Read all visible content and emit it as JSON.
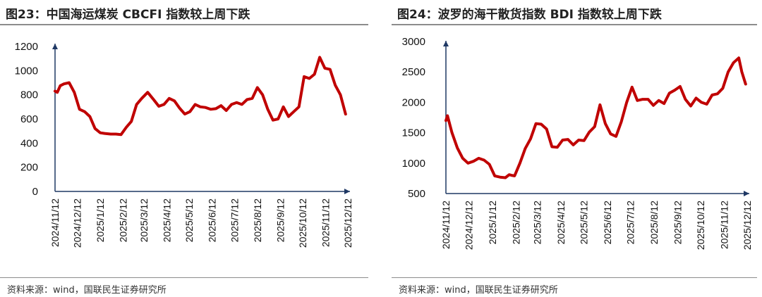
{
  "charts": [
    {
      "title": "图23：中国海运煤炭 CBCFI 指数较上周下跌",
      "source": "资料来源：wind，国联民生证券研究所",
      "line_color": "#C00000",
      "axis_color": "#1F3864"
    },
    {
      "title": "图24：波罗的海干散货指数 BDI 指数较上周下跌",
      "source": "资料来源：wind，国联民生证券研究所",
      "line_color": "#C00000",
      "axis_color": "#1F3864"
    }
  ],
  "chart_data": [
    {
      "type": "line",
      "title": "图23：中国海运煤炭 CBCFI 指数较上周下跌",
      "ylim": [
        0,
        1200
      ],
      "yticks": [
        0,
        200,
        400,
        600,
        800,
        1000,
        1200
      ],
      "xlim": [
        "2024-11-12",
        "2025-12-12"
      ],
      "xtick_labels": [
        "2024/11/12",
        "2024/12/12",
        "2025/1/12",
        "2025/2/12",
        "2025/3/12",
        "2025/4/12",
        "2025/5/12",
        "2025/6/12",
        "2025/7/12",
        "2025/8/12",
        "2025/9/12",
        "2025/10/12",
        "2025/11/12",
        "2025/12/12"
      ],
      "grid": false,
      "series": [
        {
          "x": [
            "2024-11-12",
            "2024-11-15",
            "2024-11-19",
            "2024-11-24",
            "2024-12-01",
            "2024-12-08",
            "2024-12-15",
            "2024-12-22",
            "2024-12-29",
            "2025-01-05",
            "2025-01-12",
            "2025-01-18",
            "2025-01-26",
            "2025-02-02",
            "2025-02-09",
            "2025-02-16",
            "2025-02-23",
            "2025-03-02",
            "2025-03-09",
            "2025-03-17",
            "2025-03-25",
            "2025-04-01",
            "2025-04-08",
            "2025-04-15",
            "2025-04-22",
            "2025-04-29",
            "2025-05-06",
            "2025-05-13",
            "2025-05-20",
            "2025-05-27",
            "2025-06-03",
            "2025-06-10",
            "2025-06-17",
            "2025-06-24",
            "2025-07-01",
            "2025-07-08",
            "2025-07-15",
            "2025-07-22",
            "2025-07-29",
            "2025-08-05",
            "2025-08-12",
            "2025-08-19",
            "2025-08-26",
            "2025-09-02",
            "2025-09-09",
            "2025-09-16",
            "2025-09-23",
            "2025-09-30",
            "2025-10-07",
            "2025-10-14",
            "2025-10-21",
            "2025-10-28",
            "2025-11-04",
            "2025-11-11",
            "2025-11-18",
            "2025-11-25",
            "2025-12-02",
            "2025-12-09"
          ],
          "y": [
            830,
            820,
            875,
            890,
            900,
            820,
            680,
            660,
            620,
            520,
            485,
            480,
            475,
            475,
            470,
            530,
            580,
            720,
            770,
            820,
            760,
            705,
            720,
            770,
            750,
            690,
            640,
            660,
            720,
            700,
            695,
            680,
            685,
            710,
            670,
            720,
            735,
            720,
            760,
            770,
            860,
            800,
            680,
            590,
            600,
            700,
            620,
            660,
            700,
            950,
            935,
            970,
            1110,
            1020,
            1010,
            880,
            800,
            640
          ]
        }
      ]
    },
    {
      "type": "line",
      "title": "图24：波罗的海干散货指数 BDI 指数较上周下跌",
      "ylim": [
        500,
        3000
      ],
      "yticks": [
        500,
        1000,
        1500,
        2000,
        2500,
        3000
      ],
      "xlim": [
        "2024-11-12",
        "2025-12-12"
      ],
      "xtick_labels": [
        "2024/11/12",
        "2024/12/12",
        "2025/1/12",
        "2025/2/12",
        "2025/3/12",
        "2025/4/12",
        "2025/5/12",
        "2025/6/12",
        "2025/7/12",
        "2025/8/12",
        "2025/9/12",
        "2025/10/12",
        "2025/11/12",
        "2025/12/12"
      ],
      "grid": false,
      "series": [
        {
          "x": [
            "2024-11-12",
            "2024-11-14",
            "2024-11-20",
            "2024-11-27",
            "2024-12-04",
            "2024-12-11",
            "2024-12-18",
            "2024-12-25",
            "2025-01-01",
            "2025-01-08",
            "2025-01-15",
            "2025-01-22",
            "2025-01-29",
            "2025-02-03",
            "2025-02-06",
            "2025-02-10",
            "2025-02-17",
            "2025-02-24",
            "2025-03-03",
            "2025-03-10",
            "2025-03-17",
            "2025-03-24",
            "2025-03-31",
            "2025-04-07",
            "2025-04-14",
            "2025-04-21",
            "2025-04-28",
            "2025-05-05",
            "2025-05-12",
            "2025-05-19",
            "2025-05-26",
            "2025-06-02",
            "2025-06-09",
            "2025-06-16",
            "2025-06-23",
            "2025-06-30",
            "2025-07-07",
            "2025-07-14",
            "2025-07-21",
            "2025-07-28",
            "2025-08-04",
            "2025-08-11",
            "2025-08-18",
            "2025-08-25",
            "2025-09-01",
            "2025-09-08",
            "2025-09-15",
            "2025-09-22",
            "2025-09-29",
            "2025-10-06",
            "2025-10-13",
            "2025-10-20",
            "2025-10-27",
            "2025-11-03",
            "2025-11-10",
            "2025-11-17",
            "2025-11-24",
            "2025-12-01",
            "2025-12-05",
            "2025-12-10"
          ],
          "y": [
            1700,
            1780,
            1500,
            1250,
            1080,
            1000,
            1030,
            1080,
            1050,
            980,
            790,
            770,
            760,
            810,
            800,
            790,
            1000,
            1240,
            1400,
            1650,
            1640,
            1560,
            1270,
            1260,
            1380,
            1390,
            1300,
            1380,
            1370,
            1510,
            1600,
            1960,
            1650,
            1480,
            1440,
            1680,
            2000,
            2250,
            2030,
            2050,
            2050,
            1950,
            2030,
            1980,
            2150,
            2200,
            2260,
            2050,
            1940,
            2070,
            2000,
            1970,
            2120,
            2140,
            2230,
            2500,
            2650,
            2730,
            2500,
            2300
          ]
        }
      ]
    }
  ]
}
